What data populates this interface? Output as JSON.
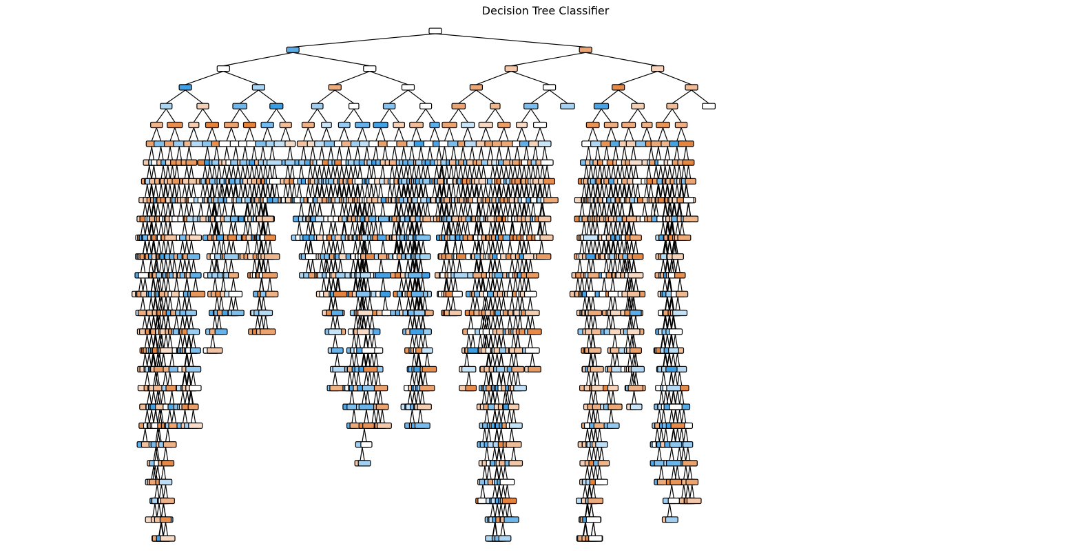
{
  "figure": {
    "title": "Decision Tree Classifier"
  },
  "tree": {
    "type": "decision-tree",
    "max_depth_levels": 28,
    "class_colors": {
      "class_0": "#e58139",
      "class_1": "#399de5",
      "neutral": "#ffffff"
    }
  }
}
